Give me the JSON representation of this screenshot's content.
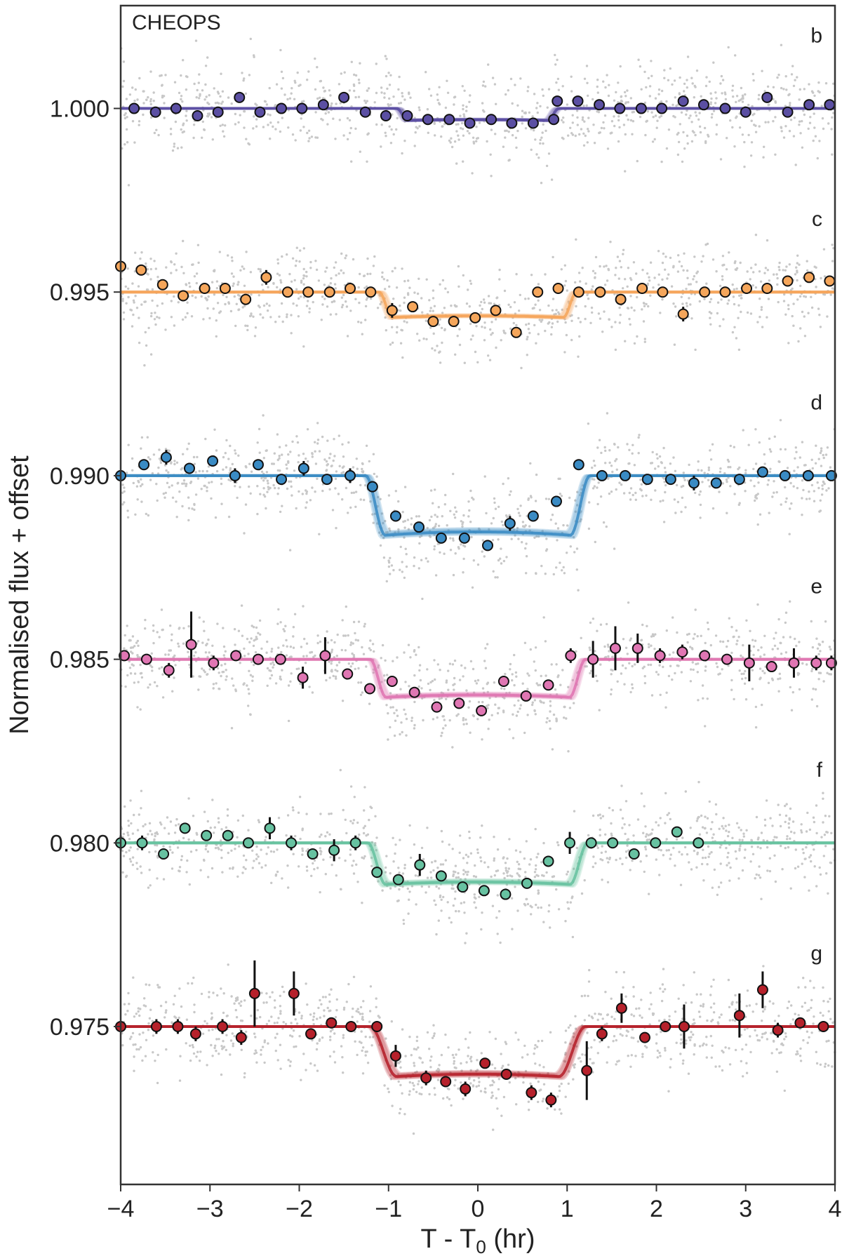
{
  "chart_data": {
    "type": "scatter",
    "title": "",
    "instrument_label": "CHEOPS",
    "xlabel_main": "T - T",
    "xlabel_sub": "0",
    "xlabel_unit": " (hr)",
    "ylabel": "Normalised flux + offset",
    "xlim": [
      -4,
      4
    ],
    "ylim": [
      0.9707,
      1.0028
    ],
    "xticks": [
      -4,
      -3,
      -2,
      -1,
      0,
      1,
      2,
      3,
      4
    ],
    "xtick_labels": [
      "−4",
      "−3",
      "−2",
      "−1",
      "0",
      "1",
      "2",
      "3",
      "4"
    ],
    "yticks": [
      1.0,
      0.995,
      0.99,
      0.985,
      0.98,
      0.975
    ],
    "ytick_labels": [
      "1.000",
      "0.995",
      "0.990",
      "0.985",
      "0.980",
      "0.975"
    ],
    "raw_point_color": "#c8c8c8",
    "series": [
      {
        "name": "b",
        "color": "#5b4fa3",
        "baseline": 1.0,
        "depth": 0.00033,
        "t14": 1.8,
        "ingress": 0.12,
        "x": [
          -3.85,
          -3.61,
          -3.38,
          -3.14,
          -2.91,
          -2.67,
          -2.44,
          -2.2,
          -1.97,
          -1.73,
          -1.5,
          -1.26,
          -1.03,
          -0.79,
          -0.56,
          -0.32,
          -0.09,
          0.15,
          0.38,
          0.62,
          0.85,
          0.89,
          1.12,
          1.36,
          1.59,
          1.83,
          2.06,
          2.3,
          2.53,
          2.77,
          3.0,
          3.24,
          3.47,
          3.71,
          3.94
        ],
        "y": [
          1.0,
          0.9999,
          1.0,
          0.9998,
          0.9999,
          1.0003,
          0.9999,
          1.0,
          1.0,
          1.0001,
          1.0003,
          0.9999,
          0.9998,
          0.9998,
          0.9997,
          0.9997,
          0.9996,
          0.9997,
          0.9996,
          0.9996,
          0.9997,
          1.0002,
          1.0002,
          1.0001,
          1.0,
          1.0,
          1.0,
          1.0002,
          1.0001,
          1.0,
          0.9999,
          1.0003,
          0.9999,
          1.0001,
          1.0001
        ],
        "yerr": [
          8e-05,
          8e-05,
          8e-05,
          8e-05,
          8e-05,
          8e-05,
          8e-05,
          8e-05,
          8e-05,
          8e-05,
          8e-05,
          8e-05,
          8e-05,
          8e-05,
          8e-05,
          8e-05,
          8e-05,
          8e-05,
          8e-05,
          8e-05,
          8e-05,
          8e-05,
          8e-05,
          8e-05,
          8e-05,
          8e-05,
          8e-05,
          8e-05,
          8e-05,
          8e-05,
          8e-05,
          8e-05,
          8e-05,
          8e-05,
          8e-05
        ]
      },
      {
        "name": "c",
        "color": "#f5a65b",
        "baseline": 0.995,
        "depth": 0.0007,
        "t14": 2.2,
        "ingress": 0.15,
        "x": [
          -4.0,
          -3.77,
          -3.53,
          -3.3,
          -3.06,
          -2.83,
          -2.6,
          -2.37,
          -2.13,
          -1.9,
          -1.66,
          -1.43,
          -1.2,
          -0.96,
          -0.73,
          -0.5,
          -0.27,
          -0.03,
          0.2,
          0.43,
          0.67,
          0.9,
          1.13,
          1.37,
          1.6,
          1.84,
          2.07,
          2.3,
          2.54,
          2.77,
          3.01,
          3.24,
          3.47,
          3.71,
          3.94
        ],
        "y": [
          0.9957,
          0.9956,
          0.9952,
          0.9949,
          0.9951,
          0.9951,
          0.9948,
          0.9954,
          0.995,
          0.995,
          0.995,
          0.9951,
          0.995,
          0.9945,
          0.9946,
          0.9942,
          0.9942,
          0.9943,
          0.9945,
          0.9939,
          0.995,
          0.9951,
          0.995,
          0.995,
          0.9948,
          0.9951,
          0.995,
          0.9944,
          0.995,
          0.995,
          0.9951,
          0.9951,
          0.9953,
          0.9954,
          0.9953
        ],
        "yerr": [
          0.0001,
          0.0001,
          0.0001,
          0.0001,
          0.0001,
          0.0001,
          0.0001,
          0.0002,
          0.0001,
          0.0001,
          0.0001,
          0.0001,
          0.0001,
          0.0002,
          0.0001,
          0.0001,
          0.0001,
          0.0001,
          0.0001,
          0.0001,
          0.0001,
          0.0001,
          0.0001,
          0.0001,
          0.0001,
          0.0001,
          0.0001,
          0.0002,
          0.0001,
          0.0001,
          0.0001,
          0.0001,
          0.0001,
          0.0001,
          0.0001
        ]
      },
      {
        "name": "d",
        "color": "#3a8bc4",
        "baseline": 0.99,
        "depth": 0.00165,
        "t14": 2.5,
        "ingress": 0.22,
        "x": [
          -4.0,
          -3.74,
          -3.49,
          -3.23,
          -2.97,
          -2.72,
          -2.46,
          -2.2,
          -1.95,
          -1.69,
          -1.43,
          -1.18,
          -0.92,
          -0.66,
          -0.41,
          -0.15,
          0.11,
          0.36,
          0.62,
          0.88,
          1.13,
          1.39,
          1.65,
          1.9,
          2.16,
          2.42,
          2.67,
          2.93,
          3.19,
          3.44,
          3.7,
          3.96
        ],
        "y": [
          0.99,
          0.9903,
          0.9905,
          0.9902,
          0.9904,
          0.99,
          0.9903,
          0.9899,
          0.9902,
          0.9899,
          0.99,
          0.9897,
          0.9889,
          0.9886,
          0.9883,
          0.9883,
          0.9881,
          0.9887,
          0.9889,
          0.9893,
          0.9903,
          0.99,
          0.99,
          0.9899,
          0.9899,
          0.9898,
          0.9898,
          0.9899,
          0.9901,
          0.99,
          0.99,
          0.99
        ],
        "yerr": [
          0.0001,
          0.0001,
          0.0002,
          0.0001,
          0.0001,
          0.0002,
          0.0001,
          0.0001,
          0.0002,
          0.0001,
          0.0002,
          0.0001,
          0.0001,
          0.0001,
          0.0001,
          0.0001,
          0.0001,
          0.0002,
          0.0001,
          0.0001,
          0.0001,
          0.0001,
          0.0001,
          0.0001,
          0.0001,
          0.0002,
          0.0001,
          0.0001,
          0.0001,
          0.0001,
          0.0001,
          0.0001
        ]
      },
      {
        "name": "e",
        "color": "#e076b3",
        "baseline": 0.985,
        "depth": 0.00105,
        "t14": 2.4,
        "ingress": 0.18,
        "x": [
          -3.96,
          -3.71,
          -3.46,
          -3.21,
          -2.96,
          -2.71,
          -2.46,
          -2.21,
          -1.96,
          -1.71,
          -1.46,
          -1.21,
          -0.96,
          -0.71,
          -0.46,
          -0.21,
          0.04,
          0.29,
          0.54,
          0.79,
          1.04,
          1.29,
          1.54,
          1.79,
          2.04,
          2.29,
          2.54,
          2.79,
          3.04,
          3.29,
          3.54,
          3.79,
          3.96
        ],
        "y": [
          0.9851,
          0.985,
          0.9847,
          0.9854,
          0.9849,
          0.9851,
          0.985,
          0.985,
          0.9845,
          0.9851,
          0.9846,
          0.9842,
          0.9844,
          0.9841,
          0.9837,
          0.9838,
          0.9836,
          0.9844,
          0.984,
          0.9843,
          0.9851,
          0.985,
          0.9853,
          0.9853,
          0.9851,
          0.9852,
          0.9851,
          0.985,
          0.9849,
          0.9848,
          0.9849,
          0.9849,
          0.9849
        ],
        "yerr": [
          0.0001,
          0.0001,
          0.0002,
          0.0009,
          0.0002,
          0.0001,
          0.0001,
          0.0001,
          0.0003,
          0.0005,
          0.0001,
          0.0001,
          0.0001,
          0.0001,
          0.0001,
          0.0001,
          0.0001,
          0.0001,
          0.0001,
          0.0001,
          0.0002,
          0.0005,
          0.0006,
          0.0004,
          0.0002,
          0.0002,
          0.0001,
          0.0001,
          0.0005,
          0.0001,
          0.0004,
          0.0002,
          0.0002
        ]
      },
      {
        "name": "f",
        "color": "#67c2a1",
        "baseline": 0.98,
        "depth": 0.00115,
        "t14": 2.45,
        "ingress": 0.2,
        "x": [
          -4.0,
          -3.76,
          -3.52,
          -3.28,
          -3.04,
          -2.8,
          -2.57,
          -2.33,
          -2.09,
          -1.85,
          -1.61,
          -1.37,
          -1.13,
          -0.89,
          -0.65,
          -0.41,
          -0.17,
          0.07,
          0.31,
          0.55,
          0.79,
          1.03,
          1.27,
          1.51,
          1.75,
          1.99,
          2.23,
          2.47
        ],
        "y": [
          0.98,
          0.98,
          0.9797,
          0.9804,
          0.9802,
          0.9802,
          0.98,
          0.9804,
          0.98,
          0.9797,
          0.9798,
          0.98,
          0.9792,
          0.979,
          0.9794,
          0.9791,
          0.9788,
          0.9787,
          0.9786,
          0.9789,
          0.9795,
          0.98,
          0.98,
          0.98,
          0.9797,
          0.98,
          0.9803,
          0.98
        ],
        "yerr": [
          0.0002,
          0.0002,
          0.0001,
          0.0001,
          0.0001,
          0.0001,
          0.0001,
          0.0003,
          0.0002,
          0.0001,
          0.0003,
          0.0002,
          0.0001,
          0.0001,
          0.0003,
          0.0001,
          0.0001,
          0.0001,
          0.0001,
          0.0001,
          0.0001,
          0.0003,
          0.0001,
          0.0001,
          0.0001,
          0.0001,
          0.0001,
          0.0001
        ]
      },
      {
        "name": "g",
        "color": "#b6212b",
        "baseline": 0.975,
        "depth": 0.0014,
        "t14": 2.4,
        "ingress": 0.3,
        "x": [
          -4.0,
          -3.6,
          -3.36,
          -3.16,
          -2.86,
          -2.65,
          -2.5,
          -2.06,
          -1.87,
          -1.64,
          -1.42,
          -1.13,
          -0.92,
          -0.58,
          -0.36,
          -0.14,
          0.08,
          0.32,
          0.6,
          0.82,
          1.22,
          1.39,
          1.61,
          1.87,
          2.1,
          2.31,
          2.93,
          3.19,
          3.36,
          3.61,
          3.87
        ],
        "y": [
          0.975,
          0.975,
          0.975,
          0.9748,
          0.975,
          0.9747,
          0.9759,
          0.9759,
          0.9748,
          0.9751,
          0.975,
          0.975,
          0.9742,
          0.9736,
          0.9735,
          0.9733,
          0.974,
          0.9737,
          0.9732,
          0.973,
          0.9738,
          0.9748,
          0.9755,
          0.9747,
          0.975,
          0.975,
          0.9753,
          0.976,
          0.9749,
          0.9751,
          0.975
        ],
        "yerr": [
          0.0001,
          0.0002,
          0.0002,
          0.0002,
          0.0002,
          0.0002,
          0.0009,
          0.0006,
          0.0001,
          0.0001,
          0.0001,
          0.0001,
          0.0003,
          0.0002,
          0.0001,
          0.0002,
          0.0001,
          0.0001,
          0.0002,
          0.0002,
          0.0008,
          0.0002,
          0.0004,
          0.0001,
          0.0001,
          0.0006,
          0.0006,
          0.0005,
          0.0002,
          0.0001,
          0.0001
        ]
      }
    ]
  }
}
